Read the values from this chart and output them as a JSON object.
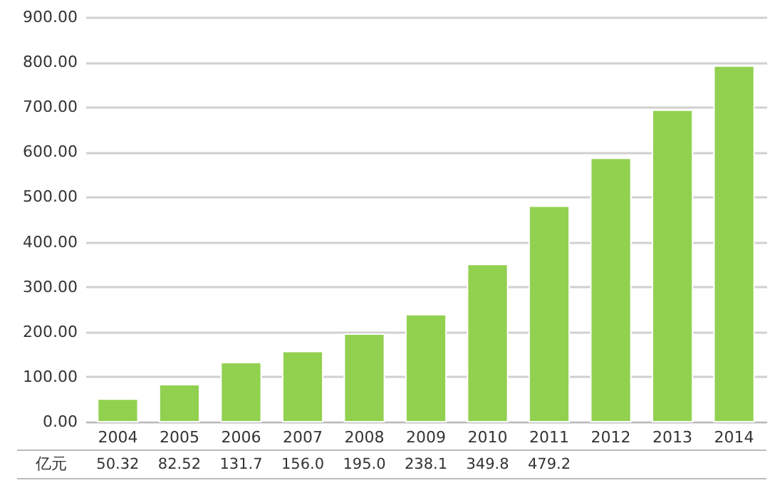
{
  "chart_data": {
    "type": "bar",
    "ylabel": "亿元",
    "categories": [
      "2004",
      "2005",
      "2006",
      "2007",
      "2008",
      "2009",
      "2010",
      "2011",
      "2012",
      "2013",
      "2014"
    ],
    "values": [
      50.32,
      82.52,
      131.7,
      156.0,
      195.0,
      238.1,
      349.8,
      479.2,
      586,
      693,
      791
    ],
    "value_labels": [
      "50.32",
      "82.52",
      "131.7",
      "156.0",
      "195.0",
      "238.1",
      "349.8",
      "479.2",
      null,
      null,
      null
    ],
    "color": "#92d050",
    "ylim": [
      0,
      900
    ],
    "yticks": [
      {
        "value": 0,
        "label": "0.00"
      },
      {
        "value": 100,
        "label": "100.00"
      },
      {
        "value": 200,
        "label": "200.00"
      },
      {
        "value": 300,
        "label": "300.00"
      },
      {
        "value": 400,
        "label": "400.00"
      },
      {
        "value": 500,
        "label": "500.00"
      },
      {
        "value": 600,
        "label": "600.00"
      },
      {
        "value": 700,
        "label": "700.00"
      },
      {
        "value": 800,
        "label": "800.00"
      },
      {
        "value": 900,
        "label": "900.00"
      }
    ],
    "grid": "y"
  }
}
